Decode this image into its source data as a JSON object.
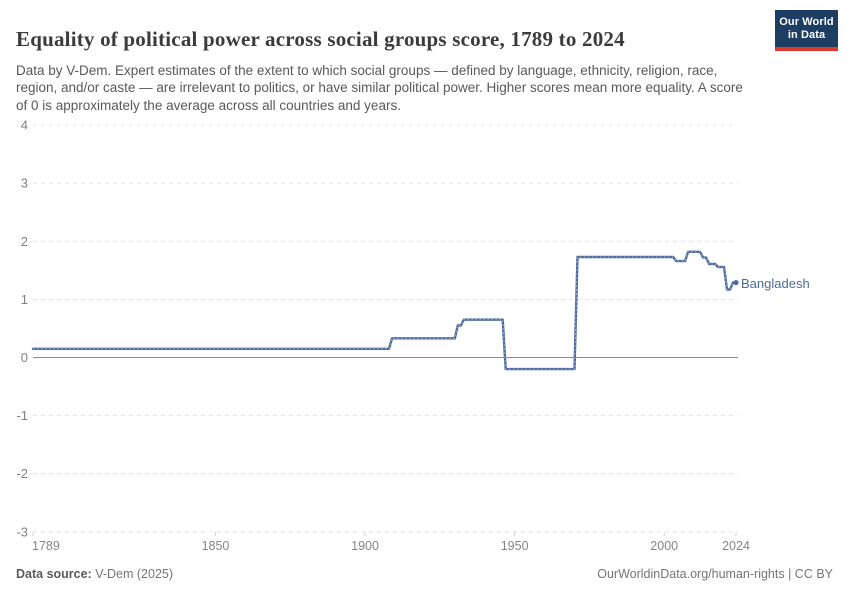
{
  "header": {
    "title": "Equality of political power across social groups score, 1789 to 2024",
    "subtitle": "Data by V-Dem. Expert estimates of the extent to which social groups — defined by language, ethnicity, religion, race, region, and/or caste — are irrelevant to politics, or have similar political power. Higher scores mean more equality. A score of 0 is approximately the average across all countries and years.",
    "logo_line1": "Our World",
    "logo_line2": "in Data"
  },
  "chart_data": {
    "type": "line",
    "title": "Equality of political power across social groups score, 1789 to 2024",
    "entity_label": "Bangladesh",
    "xlim": [
      1789,
      2024
    ],
    "ylim": [
      -3,
      4
    ],
    "x_ticks": [
      1789,
      1850,
      1900,
      1950,
      2000,
      2024
    ],
    "y_ticks": [
      4,
      3,
      2,
      1,
      0,
      -1,
      -2,
      -3
    ],
    "grid": "horizontal-dashed, solid zero line",
    "legend_position": "end-of-line label",
    "series": [
      {
        "name": "Bangladesh",
        "color": "#4C6A9C",
        "points": [
          [
            1789,
            0.15
          ],
          [
            1908,
            0.15
          ],
          [
            1909,
            0.33
          ],
          [
            1930,
            0.33
          ],
          [
            1931,
            0.55
          ],
          [
            1932,
            0.55
          ],
          [
            1933,
            0.65
          ],
          [
            1946,
            0.65
          ],
          [
            1947,
            -0.2
          ],
          [
            1970,
            -0.2
          ],
          [
            1971,
            1.73
          ],
          [
            2003,
            1.73
          ],
          [
            2004,
            1.66
          ],
          [
            2007,
            1.66
          ],
          [
            2008,
            1.82
          ],
          [
            2012,
            1.82
          ],
          [
            2013,
            1.72
          ],
          [
            2014,
            1.72
          ],
          [
            2015,
            1.61
          ],
          [
            2017,
            1.61
          ],
          [
            2018,
            1.56
          ],
          [
            2020,
            1.56
          ],
          [
            2021,
            1.17
          ],
          [
            2022,
            1.17
          ],
          [
            2023,
            1.29
          ],
          [
            2024,
            1.29
          ]
        ]
      }
    ]
  },
  "footer": {
    "source_label": "Data source:",
    "source_value": " V-Dem (2025)",
    "credit": "OurWorldinData.org/human-rights | CC BY"
  },
  "colors": {
    "line": "#4C6A9C",
    "line_bead": "#a7b6d6",
    "grid": "#e2e2e2",
    "zero_line": "#8b8b8b",
    "tick_mark": "#cfcfcf",
    "logo_bg": "#1d3d63",
    "logo_red": "#e0372f"
  }
}
